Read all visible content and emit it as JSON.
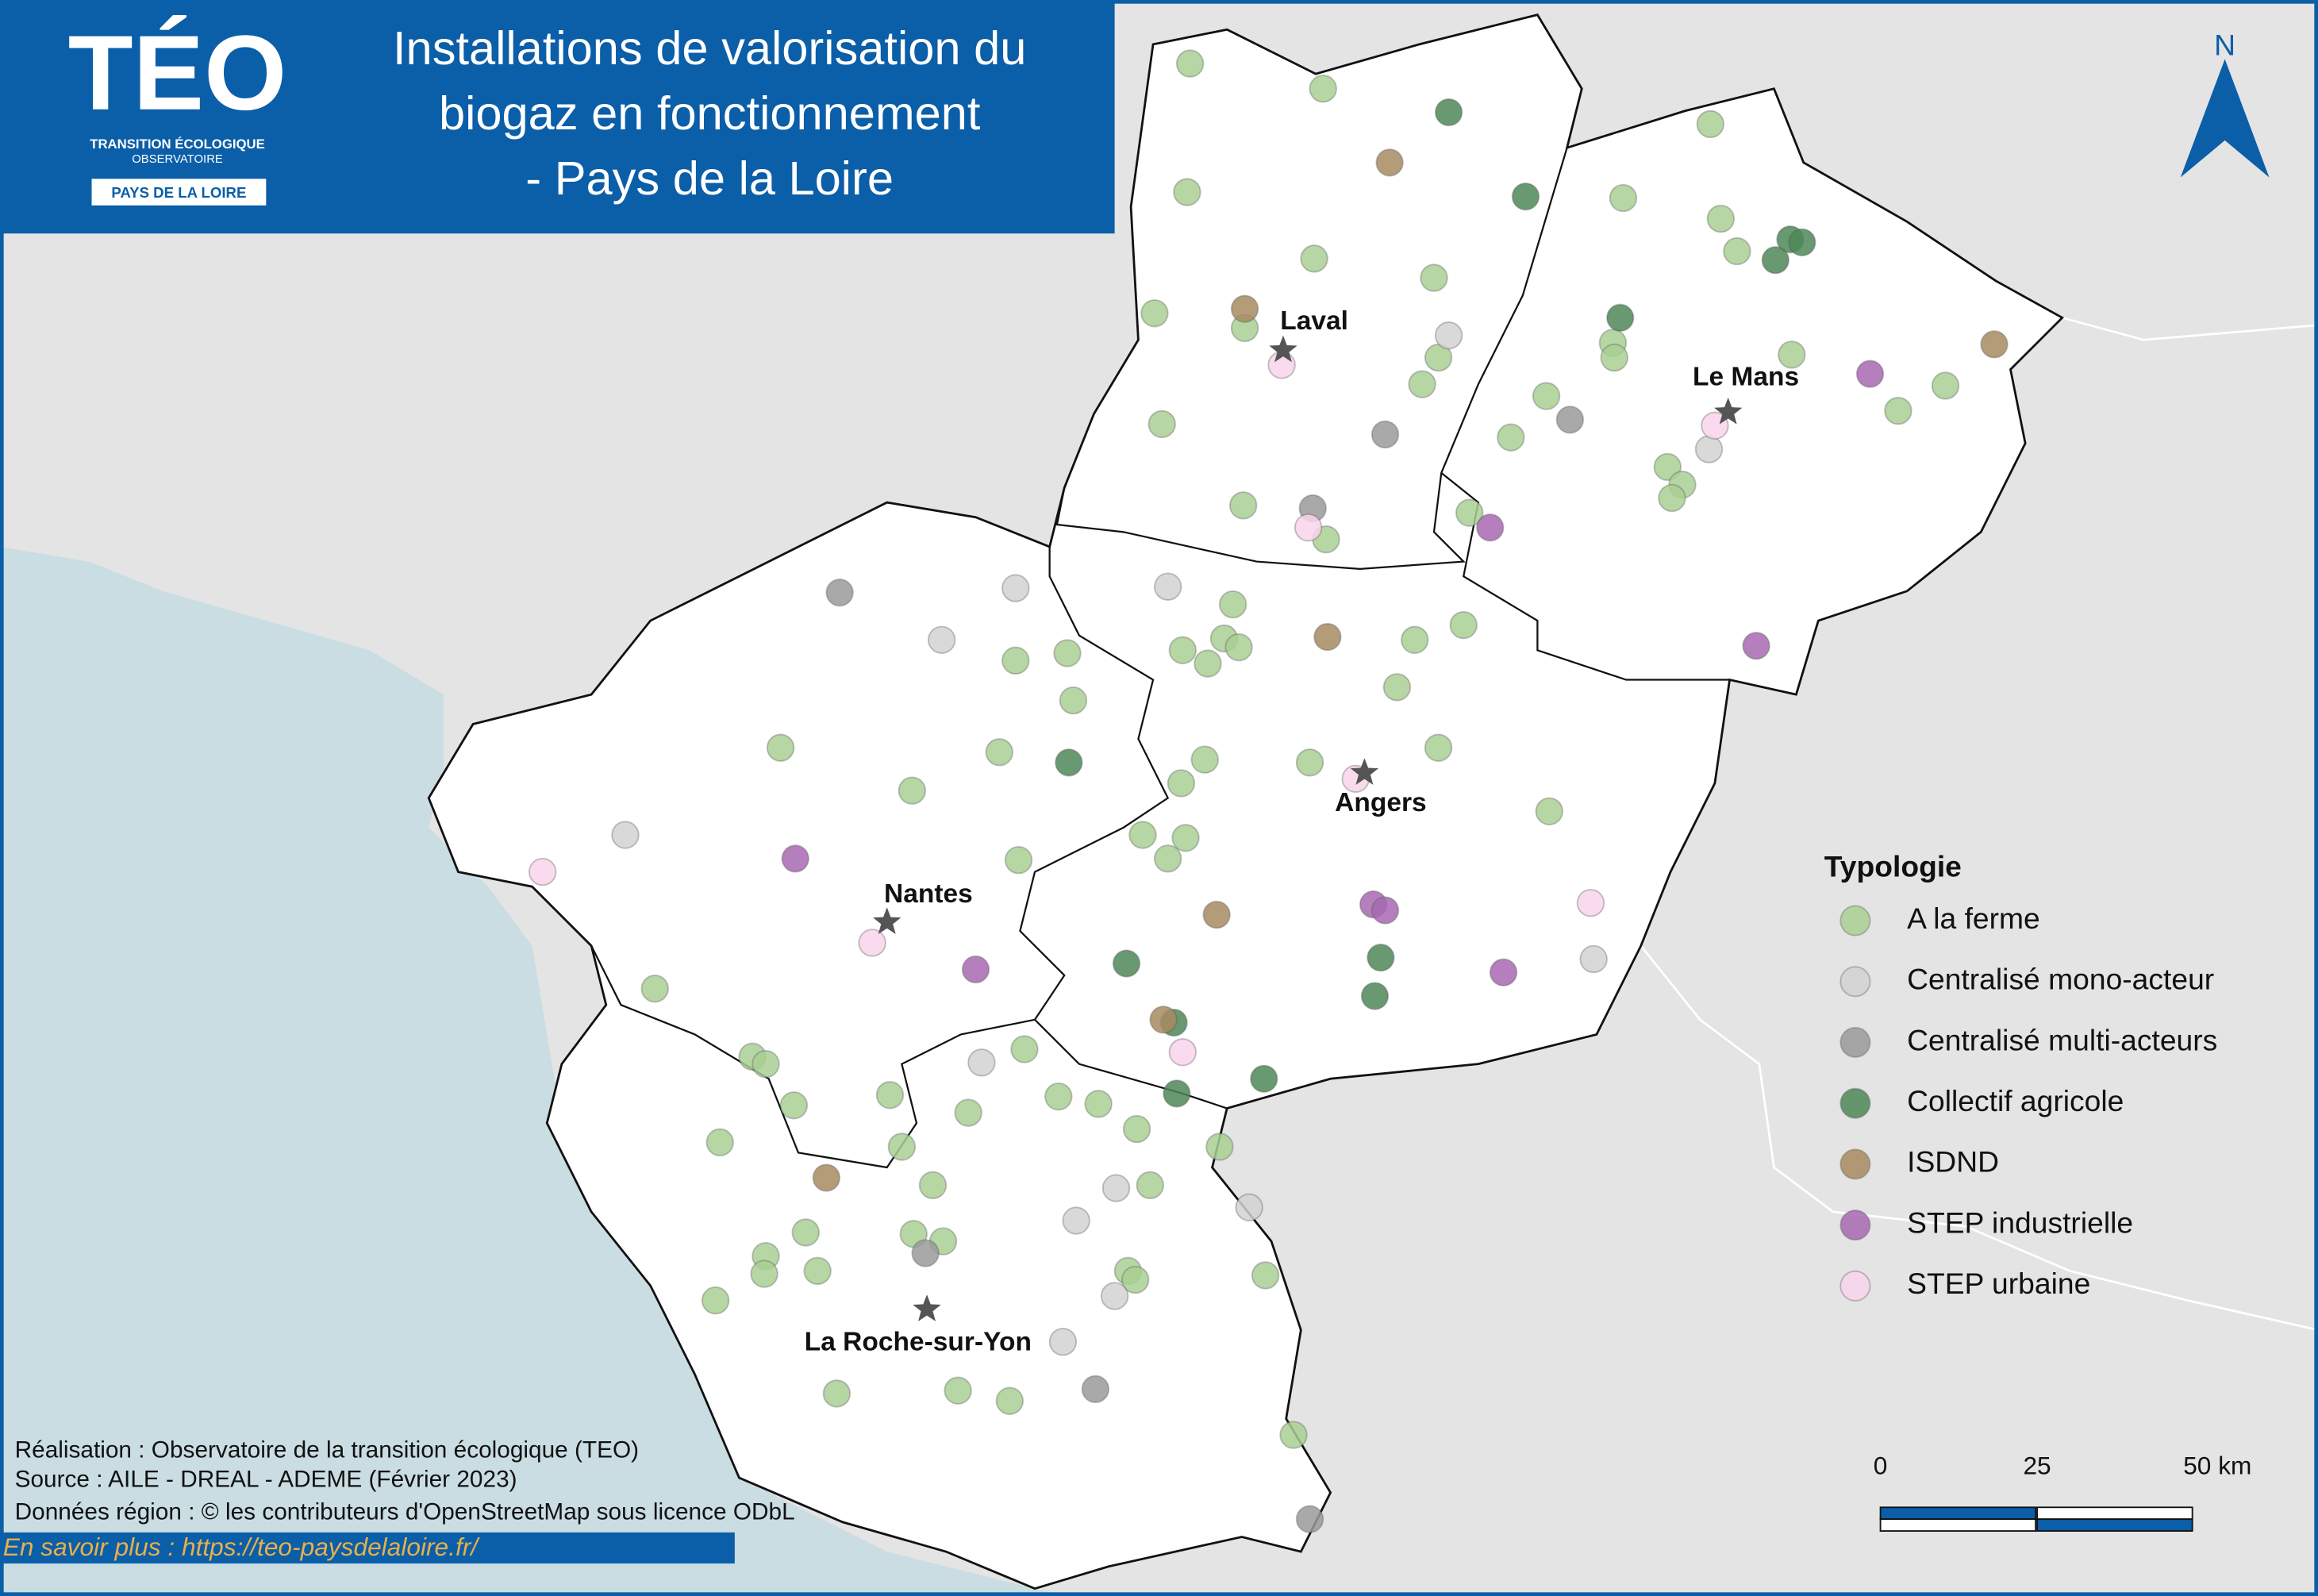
{
  "header": {
    "logo": {
      "name": "TÉO",
      "line1": "TRANSITION ÉCOLOGIQUE",
      "line2": "OBSERVATOIRE",
      "region": "PAYS DE LA LOIRE"
    },
    "title_lines": [
      "Installations de valorisation du",
      "biogaz en fonctionnement",
      "- Pays de la Loire"
    ]
  },
  "north": "N",
  "cities": [
    "Laval",
    "Le Mans",
    "Angers",
    "Nantes",
    "La Roche-sur-Yon"
  ],
  "legend": {
    "title": "Typologie",
    "items": [
      {
        "label": "A la ferme",
        "color": "#a9cf94"
      },
      {
        "label": "Centralisé mono-acteur",
        "color": "#d2d2d2"
      },
      {
        "label": "Centralisé multi-acteurs",
        "color": "#9a9a9a"
      },
      {
        "label": "Collectif agricole",
        "color": "#4e8757"
      },
      {
        "label": "ISDND",
        "color": "#a88b62"
      },
      {
        "label": "STEP industrielle",
        "color": "#a768b0"
      },
      {
        "label": "STEP urbaine",
        "color": "#f8d3ec"
      }
    ]
  },
  "scale": {
    "labels": [
      "0",
      "25",
      "50 km"
    ]
  },
  "credits": [
    "Réalisation : Observatoire de la transition écologique (TEO)",
    "Source : AILE - DREAL - ADEME (Février 2023)",
    "Données région : © les contributeurs d'OpenStreetMap sous licence ODbL"
  ],
  "link": "En savoir plus : https://teo-paysdelaloire.fr/"
}
